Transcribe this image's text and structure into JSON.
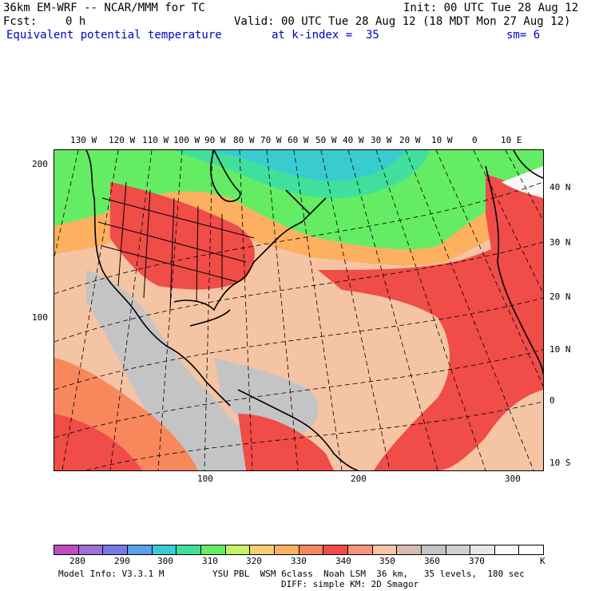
{
  "header": {
    "model_title": "36km EM-WRF -- NCAR/MMM for TC",
    "init_time": "Init: 00 UTC Tue 28 Aug 12",
    "forecast_label": "Fcst:",
    "forecast_hour": "0 h",
    "valid_time": "Valid: 00 UTC Tue 28 Aug 12 (18 MDT Mon 27 Aug 12)",
    "field_name": "Equivalent potential temperature",
    "level": "at k-index =  35",
    "smoothing": "sm= 6"
  },
  "map": {
    "longitude_labels": [
      "130 W",
      "120 W",
      "110 W",
      "100 W",
      "90 W",
      "80 W",
      "70 W",
      "60 W",
      "50 W",
      "40 W",
      "30 W",
      "20 W",
      "10 W",
      "0",
      "10 E"
    ],
    "latitude_labels": [
      "40 N",
      "30 N",
      "20 N",
      "10 N",
      "0",
      "10 S"
    ],
    "grid_x_labels": [
      "100",
      "200",
      "300"
    ],
    "grid_y_labels": [
      "200",
      "100"
    ]
  },
  "colorbar": {
    "tick_labels": [
      "280",
      "290",
      "300",
      "310",
      "320",
      "330",
      "340",
      "350",
      "360",
      "370",
      "K"
    ],
    "colors": [
      "#c04cc0",
      "#a070d8",
      "#7a78e8",
      "#5aa0ec",
      "#38ccd0",
      "#40e09c",
      "#64ec64",
      "#c8f064",
      "#f8d070",
      "#fcb060",
      "#f8885c",
      "#f04c48",
      "#f8947c",
      "#f4c4a4",
      "#d8bcae",
      "#c4c4c4",
      "#d0d0d0",
      "#e8e8e8",
      "#f8f8f8",
      "#ffffff"
    ]
  },
  "footer": {
    "model_info": "Model Info: V3.3.1 M",
    "physics": "YSU PBL  WSM 6class  Noah LSM  36 km,   35 levels,  180 sec",
    "diffusion": "DIFF: simple KM: 2D Smagor"
  }
}
